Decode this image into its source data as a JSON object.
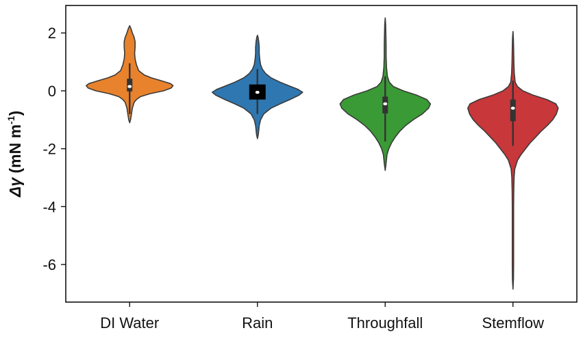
{
  "chart_data": {
    "type": "violin",
    "categories": [
      "DI Water",
      "Rain",
      "Throughfall",
      "Stemflow"
    ],
    "ylabel": {
      "symbol": "Δγ",
      "text": " (mN m",
      "sup": "-1",
      "close": ")"
    },
    "xlabel": "",
    "ylim": [
      -7.3,
      2.95
    ],
    "yticks": [
      2,
      0,
      -2,
      -4,
      -6
    ],
    "ytick_labels": [
      "2",
      "0",
      "-2",
      "-4",
      "-6"
    ],
    "grid": false,
    "legend": "none",
    "series": [
      {
        "category": "DI Water",
        "color": "#e8822c",
        "min": -1.1,
        "max": 2.25,
        "q1": -0.02,
        "median": 0.15,
        "q3": 0.42,
        "whisker_low": -0.8,
        "whisker_high": 0.95,
        "box_style": "narrow",
        "density": [
          [
            -1.1,
            0.0
          ],
          [
            -1.0,
            0.02
          ],
          [
            -0.8,
            0.04
          ],
          [
            -0.6,
            0.06
          ],
          [
            -0.4,
            0.1
          ],
          [
            -0.3,
            0.15
          ],
          [
            -0.2,
            0.24
          ],
          [
            -0.1,
            0.45
          ],
          [
            0.0,
            0.75
          ],
          [
            0.1,
            0.92
          ],
          [
            0.18,
            0.96
          ],
          [
            0.25,
            0.9
          ],
          [
            0.35,
            0.7
          ],
          [
            0.45,
            0.48
          ],
          [
            0.55,
            0.32
          ],
          [
            0.7,
            0.2
          ],
          [
            0.9,
            0.15
          ],
          [
            1.1,
            0.12
          ],
          [
            1.3,
            0.11
          ],
          [
            1.5,
            0.12
          ],
          [
            1.7,
            0.12
          ],
          [
            1.85,
            0.1
          ],
          [
            2.0,
            0.06
          ],
          [
            2.15,
            0.03
          ],
          [
            2.25,
            0.0
          ]
        ]
      },
      {
        "category": "Rain",
        "color": "#2f77b0",
        "min": -1.65,
        "max": 1.92,
        "q1": -0.3,
        "median": -0.05,
        "q3": 0.22,
        "whisker_low": -0.8,
        "whisker_high": 0.75,
        "box_style": "wide",
        "density": [
          [
            -1.65,
            0.0
          ],
          [
            -1.5,
            0.02
          ],
          [
            -1.2,
            0.04
          ],
          [
            -1.0,
            0.07
          ],
          [
            -0.8,
            0.14
          ],
          [
            -0.6,
            0.3
          ],
          [
            -0.45,
            0.5
          ],
          [
            -0.3,
            0.72
          ],
          [
            -0.15,
            0.92
          ],
          [
            -0.05,
            1.0
          ],
          [
            0.05,
            0.9
          ],
          [
            0.15,
            0.74
          ],
          [
            0.3,
            0.5
          ],
          [
            0.45,
            0.3
          ],
          [
            0.6,
            0.18
          ],
          [
            0.75,
            0.11
          ],
          [
            0.9,
            0.07
          ],
          [
            1.1,
            0.05
          ],
          [
            1.3,
            0.04
          ],
          [
            1.5,
            0.04
          ],
          [
            1.7,
            0.03
          ],
          [
            1.85,
            0.015
          ],
          [
            1.92,
            0.0
          ]
        ]
      },
      {
        "category": "Throughfall",
        "color": "#3a9a35",
        "min": -2.75,
        "max": 2.52,
        "q1": -0.78,
        "median": -0.45,
        "q3": -0.2,
        "whisker_low": -1.75,
        "whisker_high": 0.5,
        "box_style": "narrow",
        "density": [
          [
            -2.75,
            0.0
          ],
          [
            -2.5,
            0.02
          ],
          [
            -2.2,
            0.04
          ],
          [
            -2.0,
            0.08
          ],
          [
            -1.8,
            0.14
          ],
          [
            -1.6,
            0.22
          ],
          [
            -1.4,
            0.32
          ],
          [
            -1.2,
            0.45
          ],
          [
            -1.0,
            0.62
          ],
          [
            -0.8,
            0.82
          ],
          [
            -0.6,
            0.96
          ],
          [
            -0.45,
            1.0
          ],
          [
            -0.3,
            0.92
          ],
          [
            -0.15,
            0.7
          ],
          [
            0.0,
            0.4
          ],
          [
            0.15,
            0.18
          ],
          [
            0.3,
            0.09
          ],
          [
            0.5,
            0.05
          ],
          [
            0.8,
            0.03
          ],
          [
            1.2,
            0.02
          ],
          [
            1.6,
            0.02
          ],
          [
            2.0,
            0.015
          ],
          [
            2.3,
            0.01
          ],
          [
            2.52,
            0.0
          ]
        ]
      },
      {
        "category": "Stemflow",
        "color": "#c8373a",
        "min": -6.85,
        "max": 2.05,
        "q1": -1.05,
        "median": -0.6,
        "q3": -0.3,
        "whisker_low": -1.9,
        "whisker_high": 0.35,
        "box_style": "narrow",
        "density": [
          [
            -6.85,
            0.0
          ],
          [
            -6.5,
            0.012
          ],
          [
            -6.0,
            0.014
          ],
          [
            -5.0,
            0.015
          ],
          [
            -4.0,
            0.015
          ],
          [
            -3.5,
            0.018
          ],
          [
            -3.0,
            0.025
          ],
          [
            -2.7,
            0.04
          ],
          [
            -2.4,
            0.1
          ],
          [
            -2.2,
            0.18
          ],
          [
            -2.0,
            0.28
          ],
          [
            -1.8,
            0.38
          ],
          [
            -1.6,
            0.5
          ],
          [
            -1.4,
            0.62
          ],
          [
            -1.2,
            0.76
          ],
          [
            -1.0,
            0.88
          ],
          [
            -0.8,
            0.96
          ],
          [
            -0.6,
            1.0
          ],
          [
            -0.45,
            0.95
          ],
          [
            -0.3,
            0.75
          ],
          [
            -0.15,
            0.45
          ],
          [
            0.0,
            0.22
          ],
          [
            0.15,
            0.1
          ],
          [
            0.3,
            0.05
          ],
          [
            0.6,
            0.03
          ],
          [
            1.0,
            0.02
          ],
          [
            1.5,
            0.015
          ],
          [
            1.8,
            0.01
          ],
          [
            2.05,
            0.0
          ]
        ]
      }
    ]
  }
}
